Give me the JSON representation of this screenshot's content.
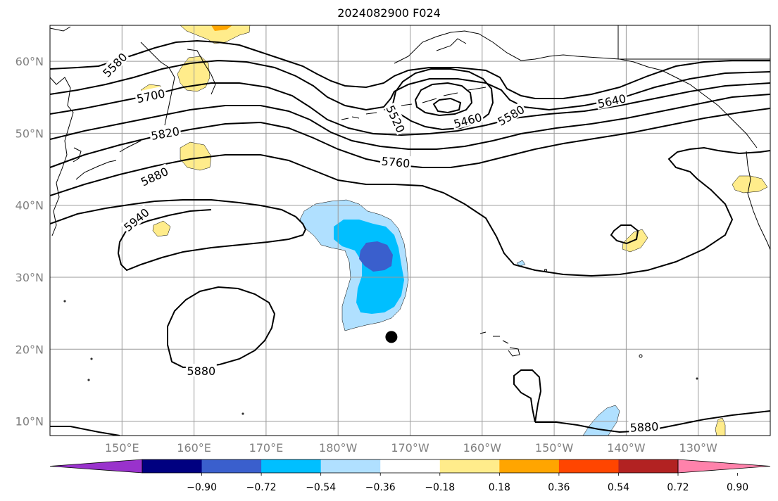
{
  "title": "2024082900 F024",
  "map": {
    "lat_ticks": [
      {
        "lat": 60,
        "label": "60°N"
      },
      {
        "lat": 50,
        "label": "50°N"
      },
      {
        "lat": 40,
        "label": "40°N"
      },
      {
        "lat": 30,
        "label": "30°N"
      },
      {
        "lat": 20,
        "label": "20°N"
      },
      {
        "lat": 10,
        "label": "10°N"
      }
    ],
    "lon_ticks": [
      {
        "lon": 150,
        "label": "150°E"
      },
      {
        "lon": 160,
        "label": "160°E"
      },
      {
        "lon": 170,
        "label": "170°E"
      },
      {
        "lon": 180,
        "label": "180°W"
      },
      {
        "lon": 190,
        "label": "170°W"
      },
      {
        "lon": 200,
        "label": "160°W"
      },
      {
        "lon": 210,
        "label": "150°W"
      },
      {
        "lon": 220,
        "label": "140°W"
      },
      {
        "lon": 230,
        "label": "130°W"
      }
    ],
    "extent": {
      "lon_min": 140,
      "lon_max": 240,
      "lat_min": 8,
      "lat_max": 65
    },
    "contour_labels": [
      {
        "text": "5580",
        "lon": 149.0,
        "lat": 59.5,
        "rotate": -45
      },
      {
        "text": "5700",
        "lon": 154.0,
        "lat": 55.2,
        "rotate": -12
      },
      {
        "text": "5820",
        "lon": 156.0,
        "lat": 50.0,
        "rotate": -10
      },
      {
        "text": "5880",
        "lon": 154.5,
        "lat": 44.0,
        "rotate": -25
      },
      {
        "text": "5940",
        "lon": 152.0,
        "lat": 38.0,
        "rotate": -40
      },
      {
        "text": "5520",
        "lon": 188.0,
        "lat": 52.0,
        "rotate": 65
      },
      {
        "text": "5460",
        "lon": 198.0,
        "lat": 51.8,
        "rotate": -15
      },
      {
        "text": "5580",
        "lon": 204.0,
        "lat": 52.5,
        "rotate": -30
      },
      {
        "text": "5640",
        "lon": 218.0,
        "lat": 54.5,
        "rotate": -12
      },
      {
        "text": "5760",
        "lon": 188.0,
        "lat": 46.0,
        "rotate": 5
      },
      {
        "text": "5880",
        "lon": 161.0,
        "lat": 17.0,
        "rotate": 0
      },
      {
        "text": "5880",
        "lon": 222.5,
        "lat": 9.2,
        "rotate": -3
      }
    ],
    "marker": {
      "name": "storm-center",
      "lon": 187.4,
      "lat": 21.7
    }
  },
  "colorbar": {
    "colors": [
      "#9932cc",
      "#000080",
      "#3a5fcd",
      "#00bfff",
      "#b0e0ff",
      "#ffffff",
      "#ffec8b",
      "#ffa500",
      "#ff4500",
      "#b22222",
      "#ff82ab"
    ],
    "tick_labels": [
      "−0.90",
      "−0.72",
      "−0.54",
      "−0.36",
      "−0.18",
      "0.18",
      "0.36",
      "0.54",
      "0.72",
      "0.90"
    ]
  }
}
